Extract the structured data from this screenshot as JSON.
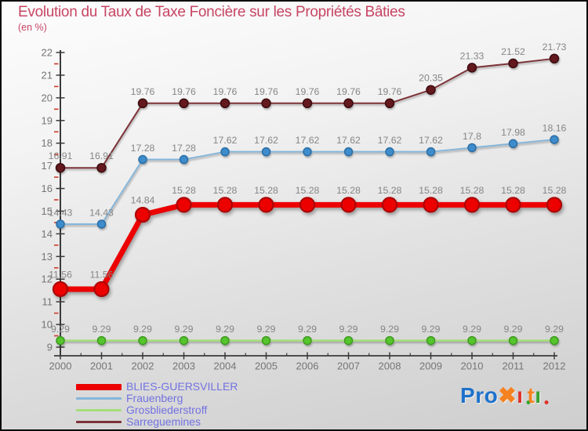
{
  "chart_data": {
    "type": "line",
    "title": "Evolution du Taux de Taxe Foncière sur les Propriétés Bâties",
    "subtitle": "(en %)",
    "xlabel": "",
    "ylabel": "",
    "x": [
      2000,
      2001,
      2002,
      2003,
      2004,
      2005,
      2006,
      2007,
      2008,
      2009,
      2010,
      2011,
      2012
    ],
    "ylim": [
      9,
      22
    ],
    "y_tick_step": 1,
    "y_minor_tick_step": 0.5,
    "grid": false,
    "point_labels_shown": true,
    "legend_position": "bottom-left",
    "series": [
      {
        "name": "BLIES-GUERSVILLER",
        "color": "#ec0000",
        "marker_fill": "#ec0000",
        "marker_edge": "#ad0505",
        "line_width": 7,
        "marker_radius": 9,
        "values": [
          11.56,
          11.56,
          14.84,
          15.28,
          15.28,
          15.28,
          15.28,
          15.28,
          15.28,
          15.28,
          15.28,
          15.28,
          15.28
        ]
      },
      {
        "name": "Frauenberg",
        "color": "#85b6da",
        "marker_fill": "#3e8ccb",
        "marker_edge": "#2a6ea6",
        "line_width": 2,
        "marker_radius": 5,
        "values": [
          14.43,
          14.43,
          17.28,
          17.28,
          17.62,
          17.62,
          17.62,
          17.62,
          17.62,
          17.62,
          17.8,
          17.98,
          18.16
        ]
      },
      {
        "name": "Grosbliederstroff",
        "color": "#a4dd7b",
        "marker_fill": "#55c52e",
        "marker_edge": "#3d9a1d",
        "line_width": 2.5,
        "marker_radius": 5,
        "values": [
          9.29,
          9.29,
          9.29,
          9.29,
          9.29,
          9.29,
          9.29,
          9.29,
          9.29,
          9.29,
          9.29,
          9.29,
          9.29
        ]
      },
      {
        "name": "Sarreguemines",
        "color": "#7c3338",
        "marker_fill": "#64191e",
        "marker_edge": "#3d0c0f",
        "line_width": 2,
        "marker_radius": 5.5,
        "values": [
          16.91,
          16.91,
          19.76,
          19.76,
          19.76,
          19.76,
          19.76,
          19.76,
          19.76,
          20.35,
          21.33,
          21.52,
          21.73
        ]
      }
    ]
  },
  "colors": {
    "title": "#c84563",
    "axis": "#3a3a3a",
    "minor_tick": "#cc3b28",
    "data_label": "#868686",
    "axis_label": "#757575",
    "legend_text": "#7272e2",
    "border": "#0a0a0a"
  },
  "logo": {
    "name": "Proxiti",
    "letters": [
      {
        "text": "P",
        "color": "#1d71cb"
      },
      {
        "text": "r",
        "color": "#1d71cb"
      },
      {
        "text": "o",
        "color": "#1d71cb"
      },
      {
        "text": "✖",
        "color": "#f58220"
      },
      {
        "text": "ı",
        "color": "#e0312a",
        "dot": "#36a32d"
      },
      {
        "text": "t",
        "color": "#f58220"
      },
      {
        "text": "ı",
        "color": "#36a32d",
        "dot": "#e0312a"
      }
    ]
  }
}
